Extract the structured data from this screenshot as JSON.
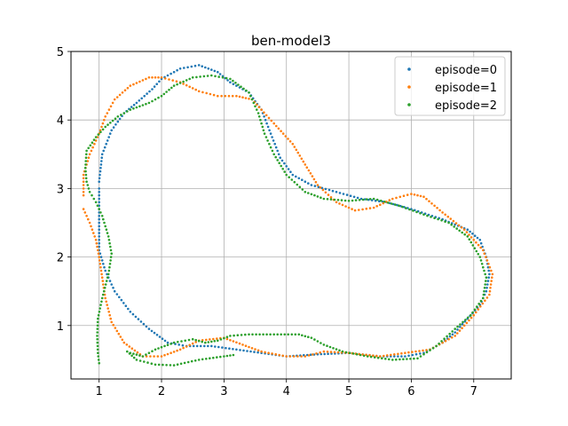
{
  "chart_data": {
    "type": "scatter",
    "title": "ben-model3",
    "xlabel": "",
    "ylabel": "",
    "xlim": [
      0.55,
      7.6
    ],
    "ylim": [
      0.22,
      5.0
    ],
    "xticks": [
      1,
      2,
      3,
      4,
      5,
      6,
      7
    ],
    "yticks": [
      1,
      2,
      3,
      4,
      5
    ],
    "grid": true,
    "legend_position": "top-right",
    "series": [
      {
        "name": "episode=0",
        "color": "#1f77b4",
        "points": [
          [
            1.0,
            3.1
          ],
          [
            1.05,
            3.5
          ],
          [
            1.2,
            3.85
          ],
          [
            1.4,
            4.1
          ],
          [
            1.6,
            4.25
          ],
          [
            1.85,
            4.45
          ],
          [
            2.0,
            4.6
          ],
          [
            2.3,
            4.75
          ],
          [
            2.6,
            4.8
          ],
          [
            2.9,
            4.7
          ],
          [
            3.1,
            4.55
          ],
          [
            3.4,
            4.4
          ],
          [
            3.6,
            4.15
          ],
          [
            3.75,
            3.8
          ],
          [
            3.9,
            3.45
          ],
          [
            4.1,
            3.2
          ],
          [
            4.4,
            3.05
          ],
          [
            4.8,
            2.95
          ],
          [
            5.2,
            2.85
          ],
          [
            5.6,
            2.8
          ],
          [
            6.0,
            2.7
          ],
          [
            6.5,
            2.55
          ],
          [
            6.9,
            2.4
          ],
          [
            7.1,
            2.25
          ],
          [
            7.2,
            2.0
          ],
          [
            7.25,
            1.75
          ],
          [
            7.2,
            1.5
          ],
          [
            7.1,
            1.3
          ],
          [
            6.9,
            1.1
          ],
          [
            6.7,
            0.9
          ],
          [
            6.5,
            0.75
          ],
          [
            6.2,
            0.6
          ],
          [
            5.9,
            0.55
          ],
          [
            5.5,
            0.55
          ],
          [
            5.0,
            0.6
          ],
          [
            4.5,
            0.58
          ],
          [
            4.0,
            0.55
          ],
          [
            3.6,
            0.6
          ],
          [
            3.2,
            0.65
          ],
          [
            2.8,
            0.7
          ],
          [
            2.4,
            0.7
          ],
          [
            2.1,
            0.75
          ],
          [
            1.8,
            0.95
          ],
          [
            1.5,
            1.2
          ],
          [
            1.25,
            1.5
          ],
          [
            1.1,
            1.8
          ],
          [
            1.0,
            2.1
          ],
          [
            1.0,
            2.4
          ],
          [
            1.0,
            2.8
          ],
          [
            1.0,
            3.0
          ]
        ]
      },
      {
        "name": "episode=1",
        "color": "#ff7f0e",
        "points": [
          [
            0.75,
            2.9
          ],
          [
            0.75,
            3.2
          ],
          [
            0.85,
            3.5
          ],
          [
            1.0,
            3.8
          ],
          [
            1.1,
            4.05
          ],
          [
            1.25,
            4.3
          ],
          [
            1.5,
            4.5
          ],
          [
            1.8,
            4.62
          ],
          [
            2.0,
            4.62
          ],
          [
            2.3,
            4.55
          ],
          [
            2.6,
            4.42
          ],
          [
            2.9,
            4.35
          ],
          [
            3.2,
            4.35
          ],
          [
            3.45,
            4.3
          ],
          [
            3.6,
            4.15
          ],
          [
            3.8,
            3.95
          ],
          [
            4.1,
            3.65
          ],
          [
            4.3,
            3.35
          ],
          [
            4.5,
            3.05
          ],
          [
            4.8,
            2.8
          ],
          [
            5.1,
            2.68
          ],
          [
            5.4,
            2.72
          ],
          [
            5.7,
            2.85
          ],
          [
            6.0,
            2.92
          ],
          [
            6.2,
            2.88
          ],
          [
            6.5,
            2.65
          ],
          [
            6.85,
            2.4
          ],
          [
            7.15,
            2.1
          ],
          [
            7.3,
            1.75
          ],
          [
            7.25,
            1.45
          ],
          [
            7.0,
            1.15
          ],
          [
            6.7,
            0.85
          ],
          [
            6.3,
            0.65
          ],
          [
            5.9,
            0.6
          ],
          [
            5.5,
            0.55
          ],
          [
            5.0,
            0.6
          ],
          [
            4.6,
            0.62
          ],
          [
            4.3,
            0.55
          ],
          [
            4.0,
            0.55
          ],
          [
            3.6,
            0.62
          ],
          [
            3.3,
            0.72
          ],
          [
            3.0,
            0.82
          ],
          [
            2.6,
            0.78
          ],
          [
            2.3,
            0.65
          ],
          [
            2.0,
            0.55
          ],
          [
            1.7,
            0.55
          ],
          [
            1.4,
            0.75
          ],
          [
            1.2,
            1.05
          ],
          [
            1.1,
            1.4
          ],
          [
            1.05,
            1.7
          ],
          [
            1.0,
            2.0
          ],
          [
            0.95,
            2.25
          ],
          [
            0.85,
            2.5
          ],
          [
            0.75,
            2.7
          ]
        ]
      },
      {
        "name": "episode=2",
        "color": "#2ca02c",
        "points": [
          [
            1.0,
            0.45
          ],
          [
            0.98,
            0.6
          ],
          [
            0.97,
            0.85
          ],
          [
            0.98,
            1.1
          ],
          [
            1.05,
            1.4
          ],
          [
            1.15,
            1.75
          ],
          [
            1.2,
            2.05
          ],
          [
            1.15,
            2.3
          ],
          [
            1.05,
            2.6
          ],
          [
            0.95,
            2.8
          ],
          [
            0.85,
            2.95
          ],
          [
            0.8,
            3.1
          ],
          [
            0.78,
            3.3
          ],
          [
            0.8,
            3.55
          ],
          [
            0.95,
            3.75
          ],
          [
            1.1,
            3.9
          ],
          [
            1.3,
            4.05
          ],
          [
            1.5,
            4.15
          ],
          [
            1.8,
            4.25
          ],
          [
            2.0,
            4.35
          ],
          [
            2.2,
            4.5
          ],
          [
            2.5,
            4.62
          ],
          [
            2.8,
            4.65
          ],
          [
            3.1,
            4.6
          ],
          [
            3.4,
            4.4
          ],
          [
            3.55,
            4.1
          ],
          [
            3.65,
            3.8
          ],
          [
            3.8,
            3.5
          ],
          [
            4.0,
            3.2
          ],
          [
            4.3,
            2.95
          ],
          [
            4.6,
            2.85
          ],
          [
            5.0,
            2.82
          ],
          [
            5.4,
            2.85
          ],
          [
            5.8,
            2.75
          ],
          [
            6.2,
            2.62
          ],
          [
            6.6,
            2.5
          ],
          [
            6.9,
            2.3
          ],
          [
            7.1,
            2.0
          ],
          [
            7.2,
            1.7
          ],
          [
            7.15,
            1.4
          ],
          [
            6.95,
            1.15
          ],
          [
            6.7,
            0.95
          ],
          [
            6.4,
            0.7
          ],
          [
            6.1,
            0.52
          ],
          [
            5.7,
            0.5
          ],
          [
            5.3,
            0.55
          ],
          [
            4.9,
            0.62
          ],
          [
            4.6,
            0.72
          ],
          [
            4.4,
            0.82
          ],
          [
            4.2,
            0.87
          ],
          [
            3.8,
            0.87
          ],
          [
            3.4,
            0.87
          ],
          [
            3.1,
            0.85
          ],
          [
            2.9,
            0.78
          ],
          [
            2.7,
            0.75
          ],
          [
            2.5,
            0.8
          ],
          [
            2.2,
            0.75
          ],
          [
            1.9,
            0.65
          ],
          [
            1.7,
            0.55
          ],
          [
            1.5,
            0.6
          ],
          [
            1.45,
            0.62
          ],
          [
            1.6,
            0.5
          ],
          [
            1.9,
            0.43
          ],
          [
            2.2,
            0.42
          ],
          [
            2.6,
            0.5
          ],
          [
            3.0,
            0.55
          ],
          [
            3.15,
            0.57
          ]
        ]
      }
    ]
  }
}
